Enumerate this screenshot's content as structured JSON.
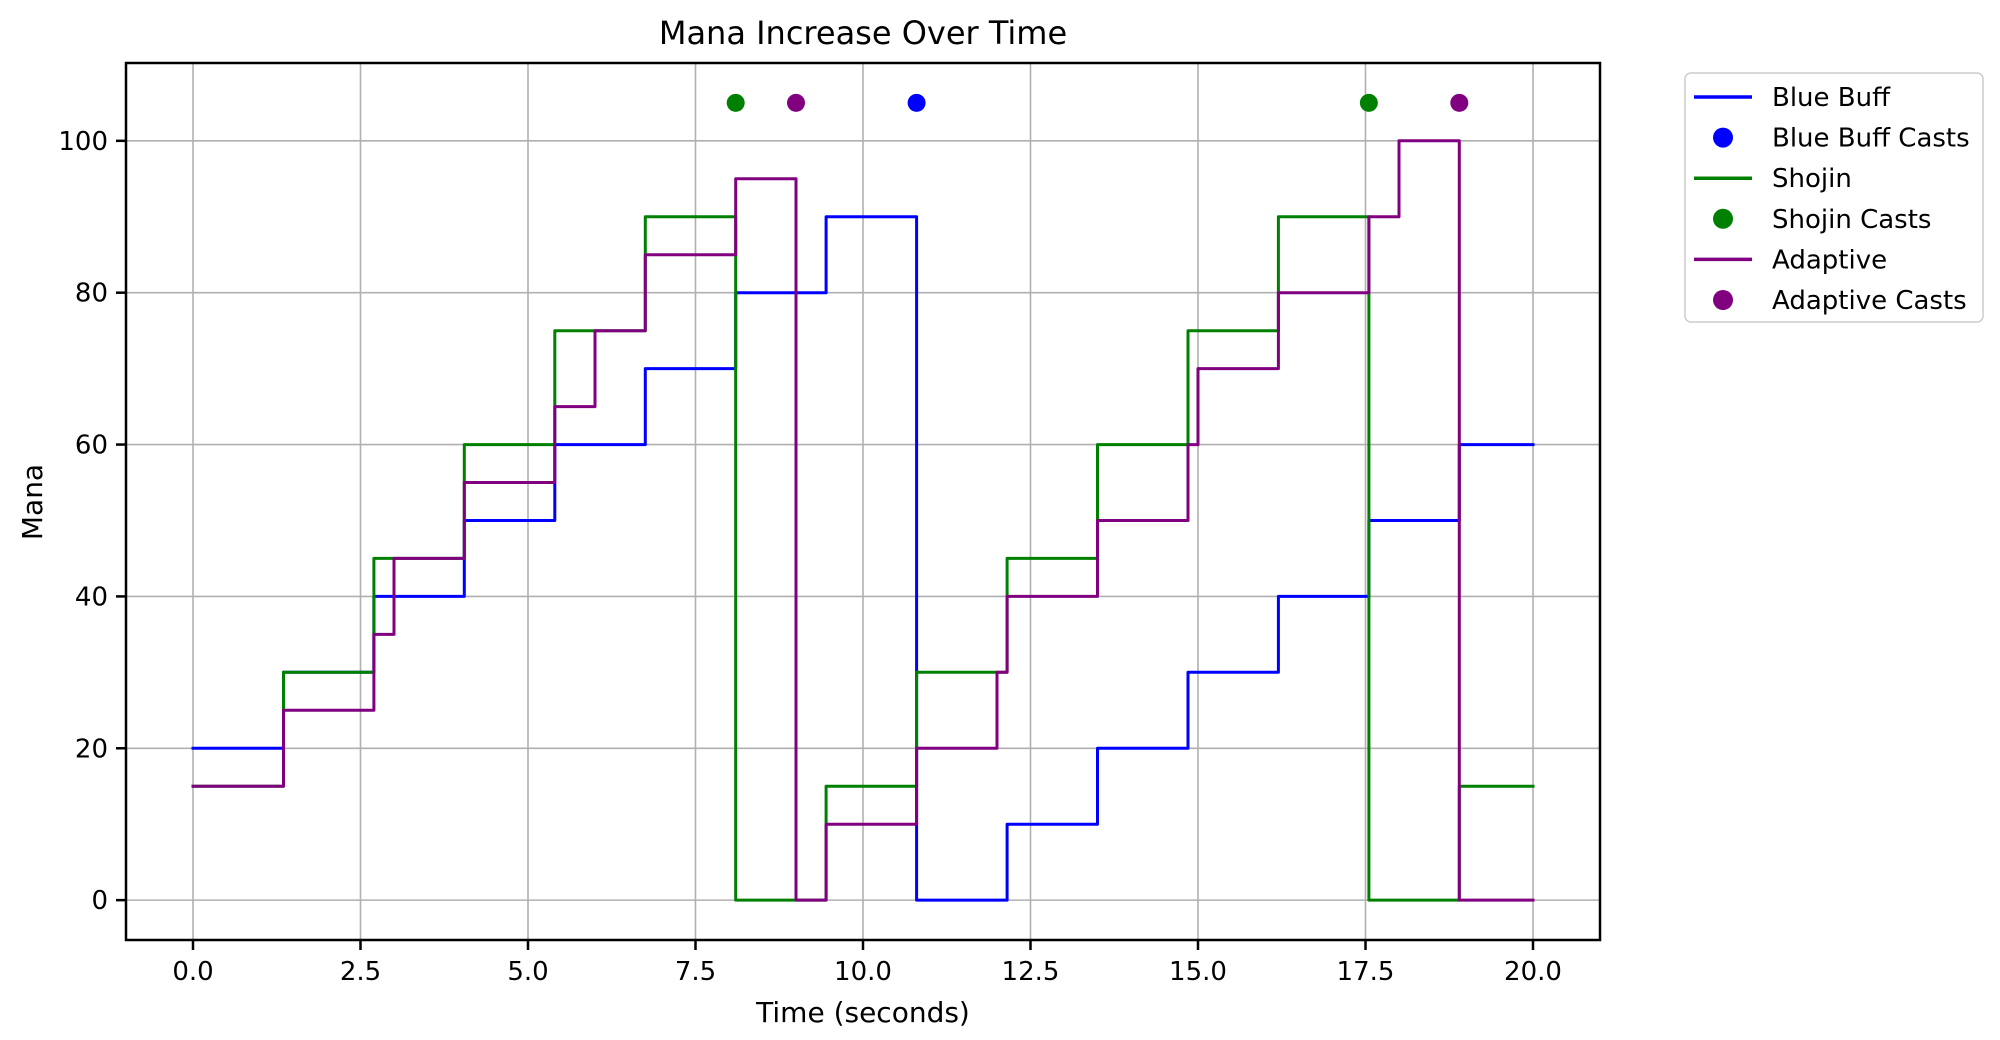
{
  "figure": {
    "background": "#ffffff"
  },
  "chart_data": {
    "type": "line",
    "step_mode": "post",
    "title": "Mana Increase Over Time",
    "xlabel": "Time (seconds)",
    "ylabel": "Mana",
    "xlim": [
      -1,
      21
    ],
    "ylim": [
      -5.25,
      110.25
    ],
    "grid": true,
    "grid_color": "#b0b0b0",
    "spine_color": "#000000",
    "legend_position": "outside-right",
    "x_ticks": {
      "values": [
        0,
        2.5,
        5,
        7.5,
        10,
        12.5,
        15,
        17.5,
        20
      ],
      "labels": [
        "0.0",
        "2.5",
        "5.0",
        "7.5",
        "10.0",
        "12.5",
        "15.0",
        "17.5",
        "20.0"
      ]
    },
    "y_ticks": {
      "values": [
        0,
        20,
        40,
        60,
        80,
        100
      ],
      "labels": [
        "0",
        "20",
        "40",
        "60",
        "80",
        "100"
      ]
    },
    "series": [
      {
        "name": "Blue Buff",
        "color": "#0000ff",
        "points": [
          [
            0,
            20
          ],
          [
            1.35,
            30
          ],
          [
            2.7,
            40
          ],
          [
            4.05,
            50
          ],
          [
            5.4,
            60
          ],
          [
            6.75,
            70
          ],
          [
            8.1,
            80
          ],
          [
            9.45,
            90
          ],
          [
            10.8,
            0
          ],
          [
            12.15,
            10
          ],
          [
            13.5,
            20
          ],
          [
            14.85,
            30
          ],
          [
            16.2,
            40
          ],
          [
            17.55,
            50
          ],
          [
            18.9,
            60
          ],
          [
            20,
            60
          ]
        ]
      },
      {
        "name": "Shojin",
        "color": "#008000",
        "points": [
          [
            0,
            15
          ],
          [
            1.35,
            30
          ],
          [
            2.7,
            45
          ],
          [
            4.05,
            60
          ],
          [
            5.4,
            75
          ],
          [
            6.75,
            90
          ],
          [
            8.1,
            0
          ],
          [
            9.45,
            15
          ],
          [
            10.8,
            30
          ],
          [
            12.15,
            45
          ],
          [
            13.5,
            60
          ],
          [
            14.85,
            75
          ],
          [
            16.2,
            90
          ],
          [
            17.55,
            0
          ],
          [
            18.9,
            15
          ],
          [
            20,
            15
          ]
        ]
      },
      {
        "name": "Adaptive",
        "color": "#800080",
        "points": [
          [
            0,
            15
          ],
          [
            1.35,
            25
          ],
          [
            2.7,
            35
          ],
          [
            3,
            45
          ],
          [
            4.05,
            55
          ],
          [
            5.4,
            65
          ],
          [
            6,
            75
          ],
          [
            6.75,
            85
          ],
          [
            8.1,
            95
          ],
          [
            9,
            0
          ],
          [
            9.45,
            10
          ],
          [
            10.8,
            20
          ],
          [
            12,
            30
          ],
          [
            12.15,
            40
          ],
          [
            13.5,
            50
          ],
          [
            14.85,
            60
          ],
          [
            15,
            70
          ],
          [
            16.2,
            80
          ],
          [
            17.55,
            90
          ],
          [
            18,
            100
          ],
          [
            18.9,
            0
          ],
          [
            20,
            0
          ]
        ]
      }
    ],
    "cast_markers": [
      {
        "name": "Blue Buff Casts",
        "color": "#0000ff",
        "marker_y": 105,
        "times": [
          10.8
        ]
      },
      {
        "name": "Shojin Casts",
        "color": "#008000",
        "marker_y": 105,
        "times": [
          8.1,
          17.55
        ]
      },
      {
        "name": "Adaptive Casts",
        "color": "#800080",
        "marker_y": 105,
        "times": [
          9,
          18.9
        ]
      }
    ],
    "legend": [
      {
        "label": "Blue Buff",
        "color": "#0000ff",
        "swatch": "line"
      },
      {
        "label": "Blue Buff Casts",
        "color": "#0000ff",
        "swatch": "dot"
      },
      {
        "label": "Shojin",
        "color": "#008000",
        "swatch": "line"
      },
      {
        "label": "Shojin Casts",
        "color": "#008000",
        "swatch": "dot"
      },
      {
        "label": "Adaptive",
        "color": "#800080",
        "swatch": "line"
      },
      {
        "label": "Adaptive Casts",
        "color": "#800080",
        "swatch": "dot"
      }
    ]
  }
}
